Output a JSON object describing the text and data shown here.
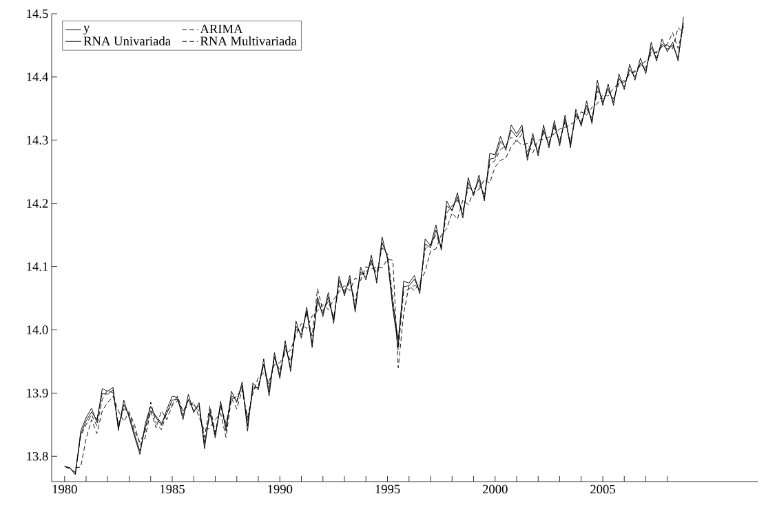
{
  "chart_data": {
    "type": "line",
    "x": [
      1980,
      1980.25,
      1980.5,
      1980.75,
      1981,
      1981.25,
      1981.5,
      1981.75,
      1982,
      1982.25,
      1982.5,
      1982.75,
      1983,
      1983.25,
      1983.5,
      1983.75,
      1984,
      1984.25,
      1984.5,
      1984.75,
      1985,
      1985.25,
      1985.5,
      1985.75,
      1986,
      1986.25,
      1986.5,
      1986.75,
      1987,
      1987.25,
      1987.5,
      1987.75,
      1988,
      1988.25,
      1988.5,
      1988.75,
      1989,
      1989.25,
      1989.5,
      1989.75,
      1990,
      1990.25,
      1990.5,
      1990.75,
      1991,
      1991.25,
      1991.5,
      1991.75,
      1992,
      1992.25,
      1992.5,
      1992.75,
      1993,
      1993.25,
      1993.5,
      1993.75,
      1994,
      1994.25,
      1994.5,
      1994.75,
      1995,
      1995.25,
      1995.5,
      1995.75,
      1996,
      1996.25,
      1996.5,
      1996.75,
      1997,
      1997.25,
      1997.5,
      1997.75,
      1998,
      1998.25,
      1998.5,
      1998.75,
      1999,
      1999.25,
      1999.5,
      1999.75,
      2000,
      2000.25,
      2000.5,
      2000.75,
      2001,
      2001.25,
      2001.5,
      2001.75,
      2002,
      2002.25,
      2002.5,
      2002.75,
      2003,
      2003.25,
      2003.5,
      2003.75,
      2004,
      2004.25,
      2004.5,
      2004.75,
      2005,
      2005.25,
      2005.5,
      2005.75,
      2006,
      2006.25,
      2006.5,
      2006.75,
      2007,
      2007.25,
      2007.5,
      2007.75,
      2008,
      2008.25,
      2008.5,
      2008.75
    ],
    "series": [
      {
        "name": "y",
        "color": "#000000",
        "line_style": "solid",
        "values": [
          13.784,
          13.782,
          13.771,
          13.84,
          13.861,
          13.876,
          13.854,
          13.907,
          13.903,
          13.909,
          13.841,
          13.889,
          13.861,
          13.831,
          13.803,
          13.852,
          13.879,
          13.861,
          13.849,
          13.874,
          13.895,
          13.893,
          13.858,
          13.898,
          13.869,
          13.885,
          13.812,
          13.874,
          13.829,
          13.887,
          13.84,
          13.903,
          13.885,
          13.918,
          13.84,
          13.916,
          13.905,
          13.954,
          13.895,
          13.964,
          13.923,
          13.983,
          13.934,
          14.014,
          13.987,
          14.036,
          13.972,
          14.052,
          14.021,
          14.059,
          14.01,
          14.085,
          14.054,
          14.086,
          14.028,
          14.099,
          14.079,
          14.118,
          14.074,
          14.147,
          14.112,
          14.032,
          13.975,
          14.077,
          14.074,
          14.086,
          14.057,
          14.144,
          14.133,
          14.166,
          14.126,
          14.204,
          14.188,
          14.217,
          14.177,
          14.241,
          14.212,
          14.245,
          14.204,
          14.279,
          14.277,
          14.306,
          14.284,
          14.324,
          14.31,
          14.324,
          14.268,
          14.311,
          14.275,
          14.324,
          14.288,
          14.331,
          14.291,
          14.34,
          14.288,
          14.349,
          14.322,
          14.362,
          14.326,
          14.395,
          14.355,
          14.389,
          14.355,
          14.405,
          14.38,
          14.42,
          14.395,
          14.43,
          14.405,
          14.455,
          14.425,
          14.46,
          14.44,
          14.455,
          14.425,
          14.495
        ]
      },
      {
        "name": "ARIMA",
        "color": "#000000",
        "line_style": "dashed",
        "values": [
          null,
          null,
          13.782,
          13.783,
          13.828,
          13.858,
          13.836,
          13.872,
          13.885,
          13.895,
          13.872,
          13.855,
          13.87,
          13.85,
          13.818,
          13.83,
          13.872,
          13.845,
          13.872,
          13.858,
          13.88,
          13.888,
          13.872,
          13.88,
          13.885,
          13.862,
          13.84,
          13.845,
          13.858,
          13.868,
          13.83,
          13.892,
          13.875,
          13.905,
          13.862,
          13.9,
          13.925,
          13.932,
          13.918,
          13.945,
          13.948,
          13.962,
          13.968,
          13.992,
          14.01,
          14.002,
          14.022,
          14.03,
          14.04,
          14.032,
          14.048,
          14.06,
          14.07,
          14.062,
          14.082,
          14.078,
          14.1,
          14.096,
          14.1,
          14.098,
          14.112,
          14.11,
          13.94,
          14.025,
          14.07,
          14.062,
          14.075,
          14.092,
          14.125,
          14.128,
          14.15,
          14.16,
          14.185,
          14.175,
          14.205,
          14.198,
          14.218,
          14.222,
          14.238,
          14.232,
          14.258,
          14.268,
          14.272,
          14.29,
          14.3,
          14.292,
          14.295,
          14.28,
          14.3,
          14.302,
          14.305,
          14.31,
          14.318,
          14.32,
          14.325,
          14.33,
          14.345,
          14.34,
          14.352,
          14.358,
          14.372,
          14.37,
          14.382,
          14.39,
          14.395,
          14.405,
          14.41,
          14.42,
          14.425,
          14.435,
          14.44,
          14.448,
          14.452,
          14.47,
          14.445,
          14.48
        ]
      },
      {
        "name": "RNA Univariada",
        "color": "#000000",
        "line_style": "solid",
        "values": [
          13.784,
          13.781,
          13.772,
          13.835,
          13.856,
          13.87,
          13.858,
          13.9,
          13.898,
          13.905,
          13.846,
          13.882,
          13.864,
          13.835,
          13.808,
          13.846,
          13.872,
          13.864,
          13.852,
          13.868,
          13.889,
          13.89,
          13.864,
          13.89,
          13.872,
          13.88,
          13.82,
          13.868,
          13.834,
          13.88,
          13.846,
          13.896,
          13.888,
          13.912,
          13.848,
          13.91,
          13.908,
          13.946,
          13.902,
          13.958,
          13.928,
          13.976,
          13.94,
          14.006,
          13.992,
          14.03,
          13.978,
          14.045,
          14.026,
          14.052,
          14.016,
          14.078,
          14.058,
          14.08,
          14.034,
          14.092,
          14.083,
          14.11,
          14.079,
          14.138,
          14.115,
          14.04,
          13.985,
          14.068,
          14.07,
          14.08,
          14.062,
          14.136,
          14.13,
          14.158,
          14.13,
          14.196,
          14.19,
          14.21,
          14.182,
          14.233,
          14.215,
          14.238,
          14.208,
          14.27,
          14.272,
          14.298,
          14.288,
          14.316,
          14.305,
          14.318,
          14.274,
          14.304,
          14.28,
          14.316,
          14.292,
          14.324,
          14.295,
          14.333,
          14.293,
          14.342,
          14.326,
          14.355,
          14.33,
          14.386,
          14.36,
          14.382,
          14.36,
          14.398,
          14.384,
          14.412,
          14.4,
          14.422,
          14.41,
          14.447,
          14.43,
          14.452,
          14.444,
          14.45,
          14.43,
          14.486
        ]
      },
      {
        "name": "RNA Multivariada",
        "color": "#000000",
        "line_style": "dashed",
        "values": [
          13.784,
          13.78,
          13.775,
          13.832,
          13.85,
          13.866,
          13.848,
          13.89,
          13.905,
          13.9,
          13.85,
          13.875,
          13.87,
          13.84,
          13.822,
          13.84,
          13.886,
          13.852,
          13.842,
          13.87,
          13.882,
          13.895,
          13.87,
          13.888,
          13.88,
          13.872,
          13.83,
          13.88,
          13.838,
          13.88,
          13.852,
          13.89,
          13.895,
          13.908,
          13.855,
          13.905,
          13.912,
          13.945,
          13.91,
          13.955,
          13.935,
          13.97,
          13.95,
          14.0,
          13.998,
          14.025,
          13.99,
          14.065,
          14.03,
          14.045,
          14.02,
          14.07,
          14.062,
          14.075,
          14.045,
          14.088,
          14.09,
          14.105,
          14.09,
          14.13,
          14.12,
          14.05,
          13.968,
          14.06,
          14.065,
          14.07,
          14.068,
          14.128,
          14.135,
          14.15,
          14.132,
          14.185,
          14.196,
          14.205,
          14.188,
          14.225,
          14.222,
          14.23,
          14.215,
          14.262,
          14.268,
          14.285,
          14.292,
          14.305,
          14.298,
          14.31,
          14.282,
          14.298,
          14.285,
          14.312,
          14.296,
          14.32,
          14.3,
          14.33,
          14.298,
          14.338,
          14.33,
          14.35,
          14.335,
          14.378,
          14.365,
          14.378,
          14.365,
          14.39,
          14.392,
          14.405,
          14.408,
          14.418,
          14.415,
          14.44,
          14.438,
          14.448,
          14.45,
          14.445,
          14.478,
          14.47
        ]
      }
    ],
    "xlim": [
      1979.4,
      2012.2
    ],
    "ylim": [
      13.76,
      14.5
    ],
    "xticks": [
      1980,
      {
        "value": 1981,
        "label": null
      },
      {
        "value": 1982,
        "label": null
      },
      {
        "value": 1983,
        "label": null
      },
      {
        "value": 1984,
        "label": null
      },
      1985,
      {
        "value": 1986,
        "label": null
      },
      {
        "value": 1987,
        "label": null
      },
      {
        "value": 1988,
        "label": null
      },
      {
        "value": 1989,
        "label": null
      },
      1990,
      {
        "value": 1991,
        "label": null
      },
      {
        "value": 1992,
        "label": null
      },
      {
        "value": 1993,
        "label": null
      },
      {
        "value": 1994,
        "label": null
      },
      1995,
      {
        "value": 1996,
        "label": null
      },
      {
        "value": 1997,
        "label": null
      },
      {
        "value": 1998,
        "label": null
      },
      {
        "value": 1999,
        "label": null
      },
      2000,
      {
        "value": 2001,
        "label": null
      },
      {
        "value": 2002,
        "label": null
      },
      {
        "value": 2003,
        "label": null
      },
      {
        "value": 2004,
        "label": null
      },
      2005,
      {
        "value": 2006,
        "label": null
      },
      {
        "value": 2007,
        "label": null
      },
      {
        "value": 2008,
        "label": null
      }
    ],
    "yticks": [
      13.8,
      13.9,
      {
        "value": 14,
        "label": "14.0"
      },
      14.1,
      14.2,
      14.3,
      14.4,
      14.5
    ],
    "legend": "top left",
    "grid": false
  }
}
